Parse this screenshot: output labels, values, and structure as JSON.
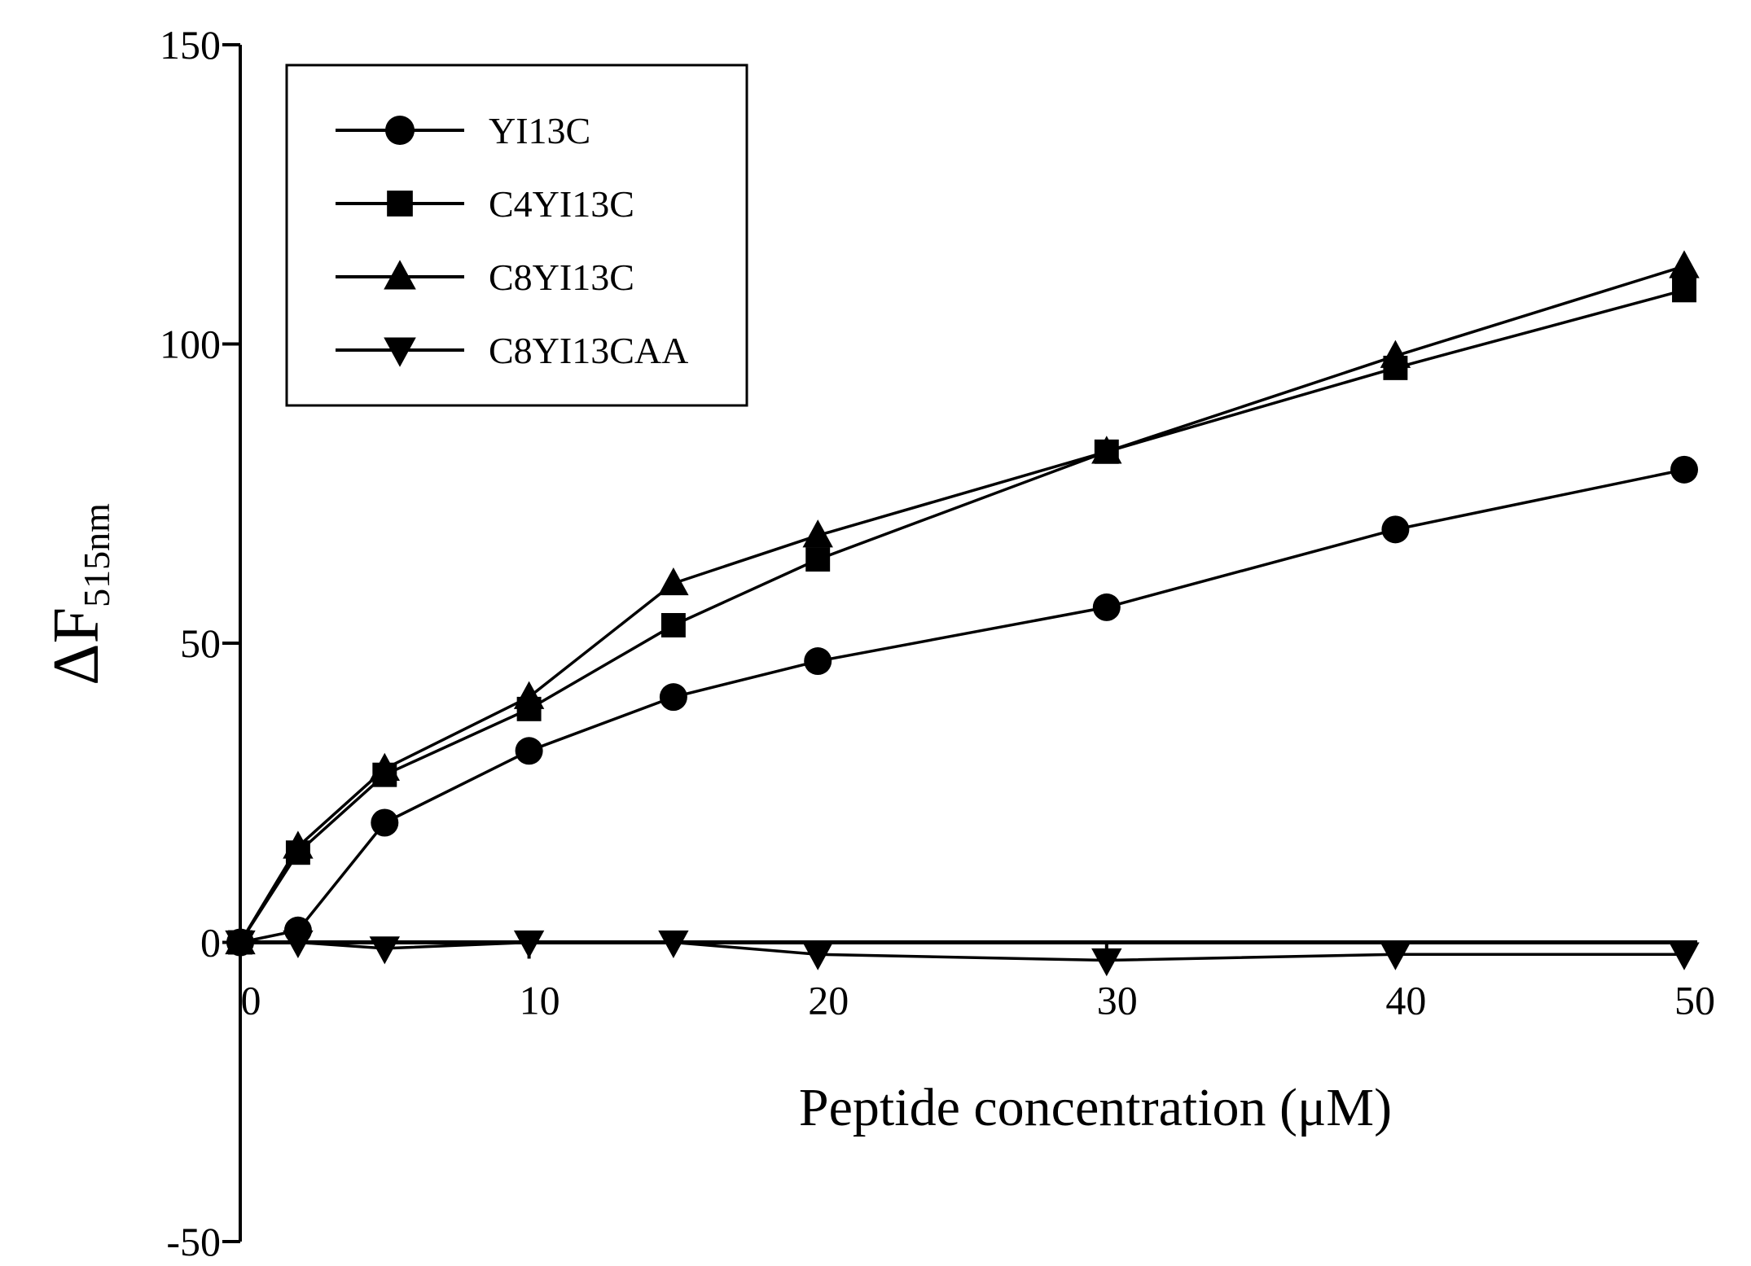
{
  "chart_data": {
    "type": "line",
    "title": "",
    "xlabel": "Peptide concentration (μM)",
    "ylabel": {
      "main": "ΔF",
      "sub": "515nm"
    },
    "xlim": [
      0,
      50
    ],
    "ylim": [
      -50,
      150
    ],
    "x_ticks": [
      0,
      10,
      20,
      30,
      40,
      50
    ],
    "y_ticks": [
      -50,
      0,
      50,
      100,
      150
    ],
    "grid": false,
    "legend_position": "top-left",
    "x": [
      0,
      2,
      5,
      10,
      15,
      20,
      30,
      40,
      50
    ],
    "series": [
      {
        "name": "YI13C",
        "marker": "circle",
        "values": [
          0,
          2,
          20,
          32,
          41,
          47,
          56,
          69,
          79
        ]
      },
      {
        "name": "C4YI13C",
        "marker": "square",
        "values": [
          0,
          15,
          28,
          39,
          53,
          64,
          82,
          96,
          109
        ]
      },
      {
        "name": "C8YI13C",
        "marker": "triangle-up",
        "values": [
          0,
          16,
          29,
          41,
          60,
          68,
          82,
          98,
          113
        ]
      },
      {
        "name": "C8YI13CAA",
        "marker": "triangle-down",
        "values": [
          0,
          0,
          -1,
          0,
          0,
          -2,
          -3,
          -2,
          -2
        ]
      }
    ]
  }
}
